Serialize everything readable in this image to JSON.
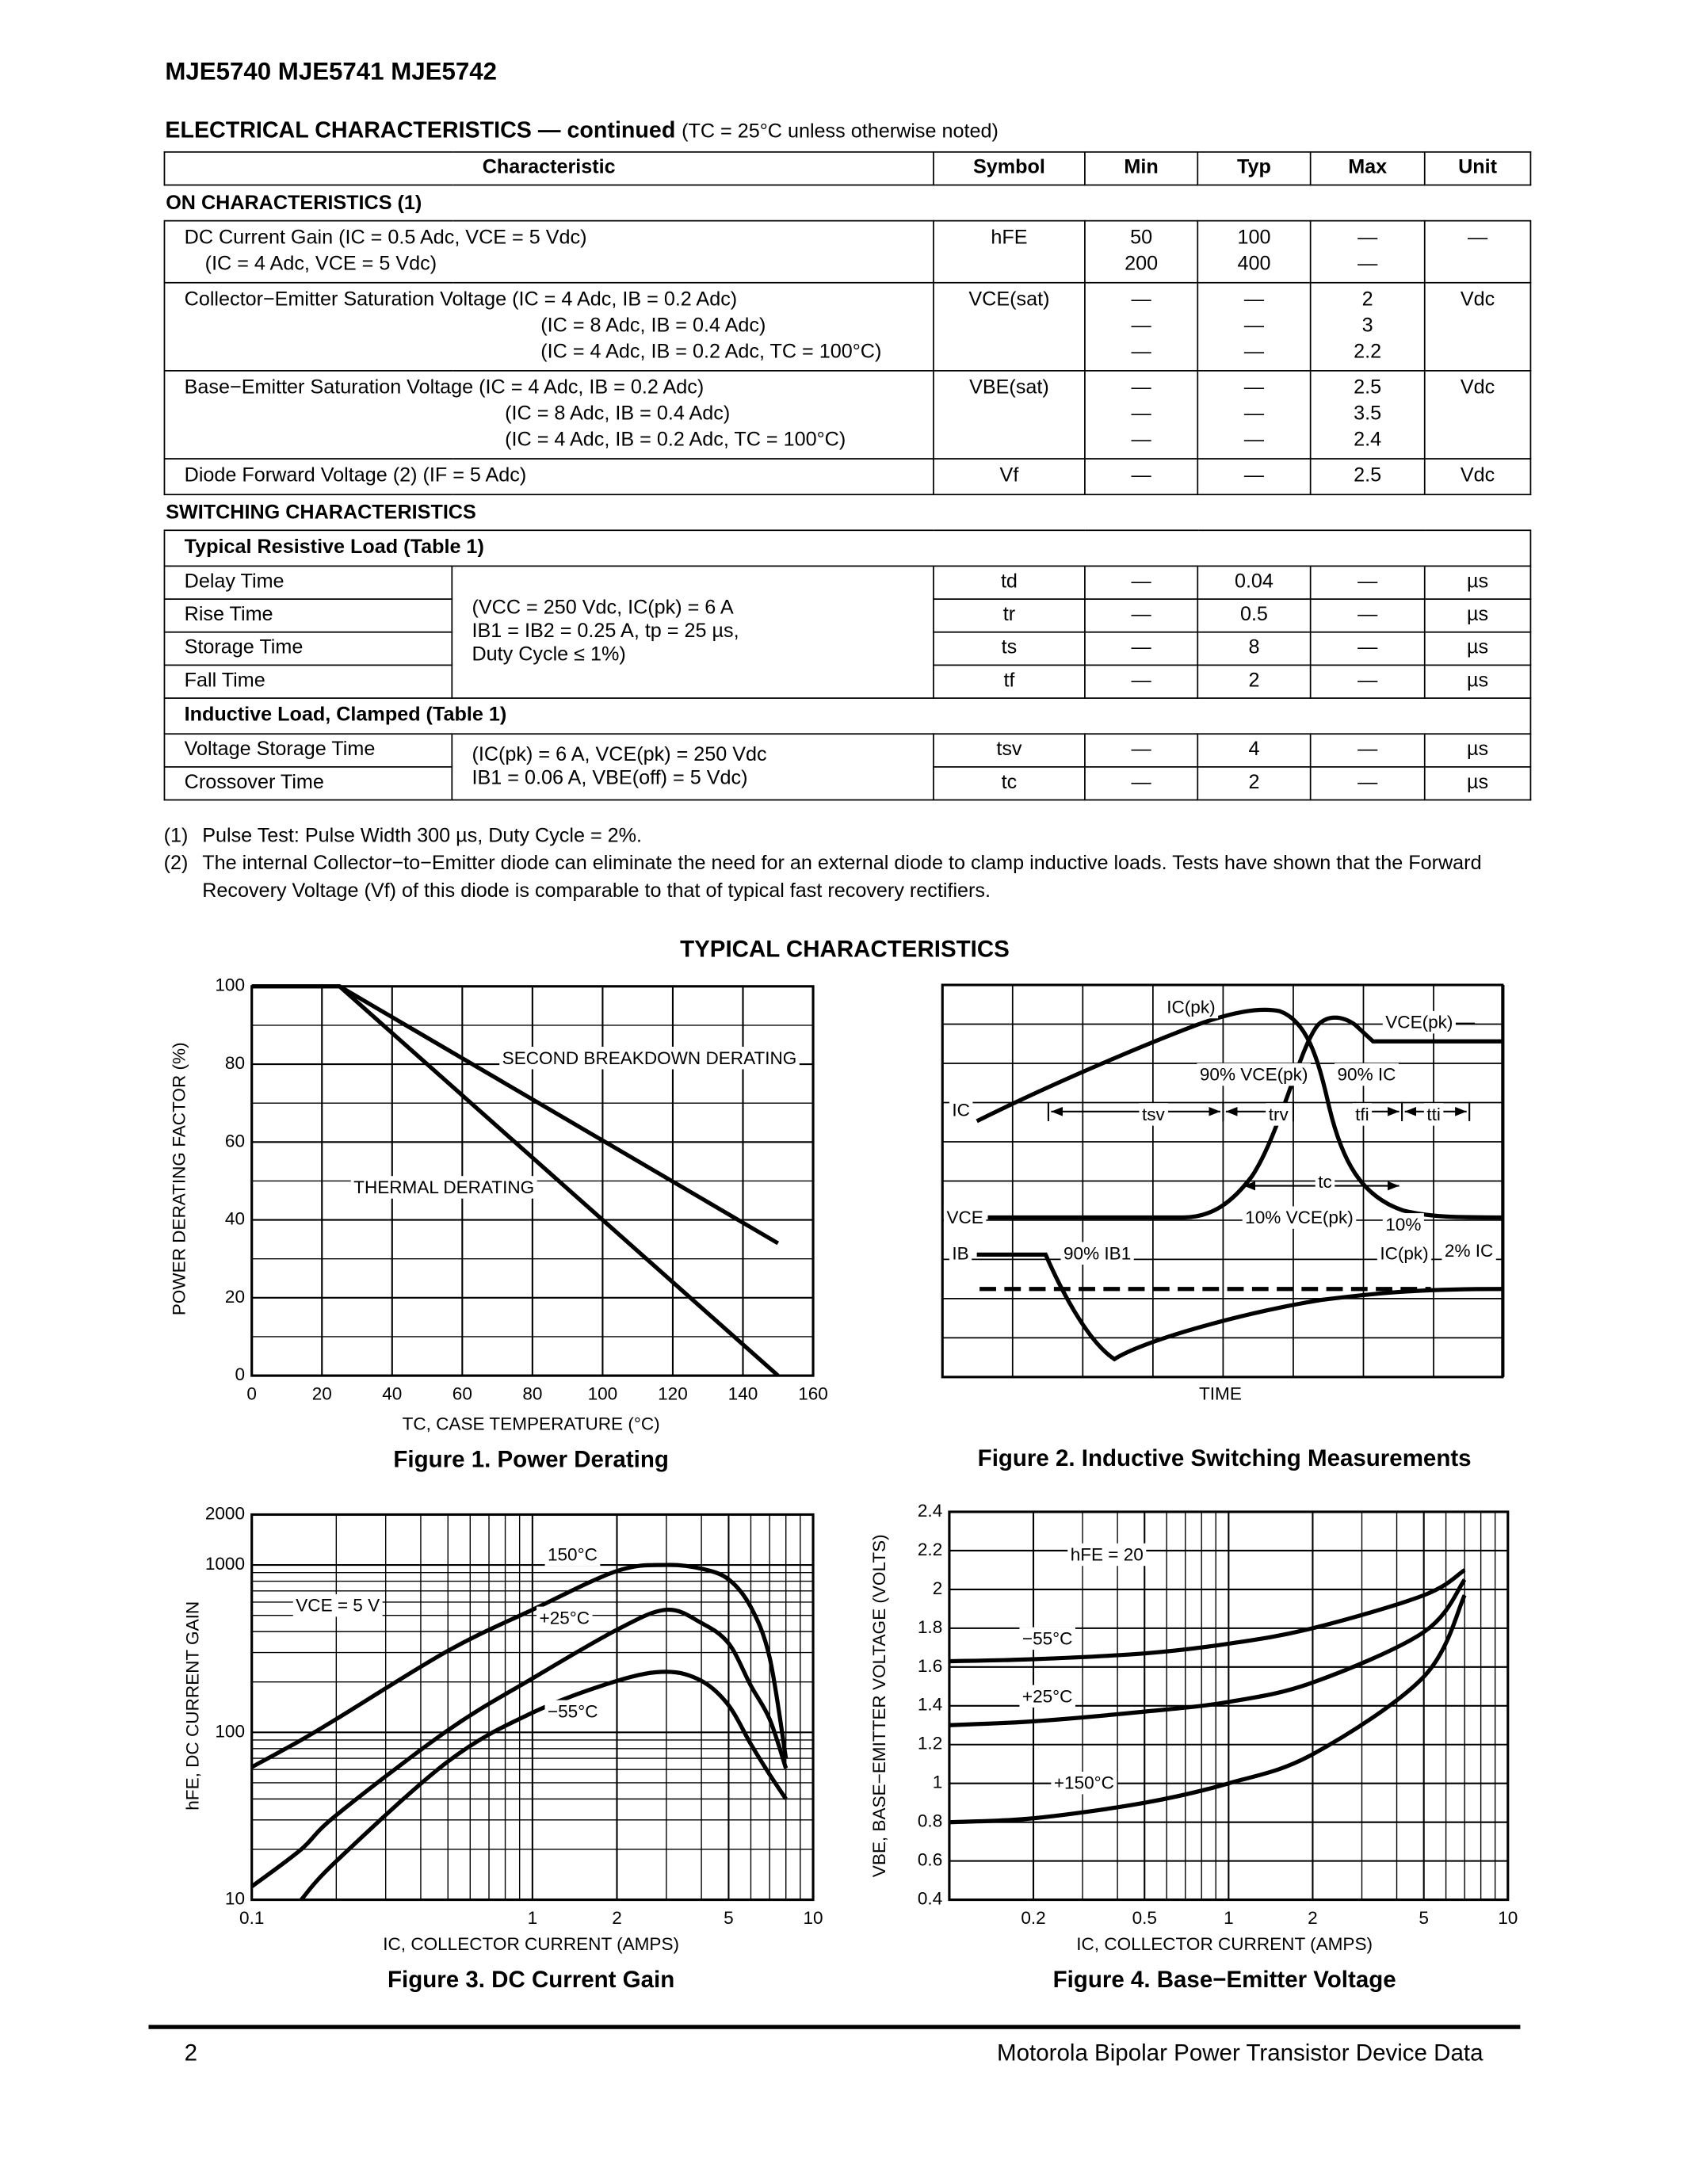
{
  "header": {
    "title": "MJE5740 MJE5741 MJE5742"
  },
  "section": {
    "title": "ELECTRICAL CHARACTERISTICS — continued",
    "condition": "(TC = 25°C unless otherwise noted)"
  },
  "table": {
    "columns": [
      "Characteristic",
      "Symbol",
      "Min",
      "Typ",
      "Max",
      "Unit"
    ],
    "groups": [
      {
        "title": "ON CHARACTERISTICS (1)",
        "rows": [
          {
            "characteristic": [
              "DC Current Gain (IC = 0.5 Adc, VCE = 5 Vdc)",
              "(IC = 4 Adc, VCE = 5 Vdc)"
            ],
            "symbol": "hFE",
            "min": [
              50,
              200
            ],
            "typ": [
              100,
              400
            ],
            "max": [
              "—",
              "—"
            ],
            "unit": "—"
          },
          {
            "characteristic": [
              "Collector−Emitter Saturation Voltage (IC = 4 Adc, IB = 0.2 Adc)",
              "(IC = 8 Adc, IB = 0.4 Adc)",
              "(IC = 4 Adc, IB = 0.2 Adc, TC = 100°C)"
            ],
            "symbol": "VCE(sat)",
            "min": [
              "—",
              "—",
              "—"
            ],
            "typ": [
              "—",
              "—",
              "—"
            ],
            "max": [
              2,
              3,
              2.2
            ],
            "unit": "Vdc"
          },
          {
            "characteristic": [
              "Base−Emitter Saturation Voltage (IC = 4 Adc, IB = 0.2 Adc)",
              "(IC = 8 Adc, IB = 0.4 Adc)",
              "(IC = 4 Adc, IB = 0.2 Adc, TC = 100°C)"
            ],
            "symbol": "VBE(sat)",
            "min": [
              "—",
              "—",
              "—"
            ],
            "typ": [
              "—",
              "—",
              "—"
            ],
            "max": [
              2.5,
              3.5,
              2.4
            ],
            "unit": "Vdc"
          },
          {
            "characteristic": [
              "Diode Forward Voltage (2) (IF = 5 Adc)"
            ],
            "symbol": "Vf",
            "min": [
              "—"
            ],
            "typ": [
              "—"
            ],
            "max": [
              2.5
            ],
            "unit": "Vdc"
          }
        ]
      },
      {
        "title": "SWITCHING CHARACTERISTICS",
        "subgroups": [
          {
            "title": "Typical Resistive Load (Table 1)",
            "condition": [
              "(VCC = 250 Vdc, IC(pk) = 6 A",
              "IB1 = IB2 = 0.25 A, tp = 25 µs,",
              "Duty Cycle ≤ 1%)"
            ],
            "rows": [
              {
                "characteristic": "Delay Time",
                "symbol": "td",
                "min": "—",
                "typ": 0.04,
                "max": "—",
                "unit": "µs"
              },
              {
                "characteristic": "Rise Time",
                "symbol": "tr",
                "min": "—",
                "typ": 0.5,
                "max": "—",
                "unit": "µs"
              },
              {
                "characteristic": "Storage Time",
                "symbol": "ts",
                "min": "—",
                "typ": 8,
                "max": "—",
                "unit": "µs"
              },
              {
                "characteristic": "Fall Time",
                "symbol": "tf",
                "min": "—",
                "typ": 2,
                "max": "—",
                "unit": "µs"
              }
            ]
          },
          {
            "title": "Inductive Load, Clamped (Table 1)",
            "condition": [
              "(IC(pk) = 6 A, VCE(pk) = 250 Vdc",
              "IB1 = 0.06 A, VBE(off) = 5 Vdc)"
            ],
            "rows": [
              {
                "characteristic": "Voltage Storage Time",
                "symbol": "tsv",
                "min": "—",
                "typ": 4,
                "max": "—",
                "unit": "µs"
              },
              {
                "characteristic": "Crossover Time",
                "symbol": "tc",
                "min": "—",
                "typ": 2,
                "max": "—",
                "unit": "µs"
              }
            ]
          }
        ]
      }
    ]
  },
  "footnotes": [
    {
      "mark": "(1)",
      "text": "Pulse Test: Pulse Width 300 µs, Duty Cycle = 2%."
    },
    {
      "mark": "(2)",
      "text": "The internal Collector−to−Emitter diode can eliminate the need for an external diode to clamp inductive loads. Tests have shown that the Forward Recovery Voltage (Vf) of this diode is comparable to that of typical fast recovery rectifiers."
    }
  ],
  "figures_title": "TYPICAL CHARACTERISTICS",
  "chart_data": [
    {
      "type": "line",
      "title": "Figure 1. Power Derating",
      "x_label": "TC, CASE TEMPERATURE (°C)",
      "y_label": "POWER DERATING FACTOR (%)",
      "x": [
        0,
        25,
        150
      ],
      "series": [
        {
          "name": "SECOND BREAKDOWN DERATING",
          "color": "#000000",
          "values": [
            100,
            100,
            34
          ]
        },
        {
          "name": "THERMAL DERATING",
          "color": "#000000",
          "values": [
            100,
            100,
            0
          ]
        }
      ],
      "xlim": [
        0,
        160
      ],
      "xticks": [
        0,
        20,
        40,
        60,
        80,
        100,
        120,
        140,
        160
      ],
      "ylim": [
        0,
        100
      ],
      "yticks": [
        0,
        20,
        40,
        60,
        80,
        100
      ],
      "yminor": [
        10,
        30,
        50,
        70,
        90
      ],
      "grid": true
    },
    {
      "type": "line",
      "title": "Figure 3. DC Current Gain",
      "x_label": "IC, COLLECTOR CURRENT (AMPS)",
      "y_label": "hFE, DC CURRENT GAIN",
      "annotations": [
        "VCE = 5 V"
      ],
      "xscale": "log",
      "yscale": "log",
      "x": [
        0.1,
        0.15,
        0.2,
        0.5,
        1,
        2,
        3,
        4,
        5,
        6,
        7,
        8
      ],
      "series": [
        {
          "name": "150°C",
          "color": "#000000",
          "values": [
            62,
            90,
            120,
            307,
            540,
            920,
            1000,
            950,
            820,
            560,
            280,
            70
          ]
        },
        {
          "name": "+25°C",
          "color": "#000000",
          "values": [
            12,
            20,
            32,
            103,
            210,
            410,
            540,
            450,
            340,
            190,
            120,
            61
          ]
        },
        {
          "name": "−55°C",
          "color": "#000000",
          "values": [
            null,
            10,
            17,
            67,
            131,
            203,
            230,
            203,
            145,
            85,
            56,
            40
          ]
        }
      ],
      "xlim": [
        0.1,
        10
      ],
      "xticks": [
        0.1,
        1,
        2,
        5,
        10
      ],
      "xminor": [
        0.2,
        0.3,
        0.4,
        0.5,
        0.6,
        0.7,
        0.8,
        0.9,
        3,
        4,
        6,
        7,
        8,
        9
      ],
      "ylim": [
        10,
        2000
      ],
      "yticks": [
        10,
        100,
        1000,
        2000
      ],
      "yminor": [
        20,
        30,
        40,
        50,
        60,
        70,
        80,
        90,
        200,
        300,
        400,
        500,
        600,
        700,
        800,
        900
      ],
      "grid": true
    },
    {
      "type": "line",
      "title": "Figure 4. Base−Emitter Voltage",
      "x_label": "IC, COLLECTOR CURRENT (AMPS)",
      "y_label": "VBE, BASE−EMITTER VOLTAGE (VOLTS)",
      "annotations": [
        "hFE = 20"
      ],
      "xscale": "log",
      "x": [
        0.1,
        0.2,
        0.5,
        1,
        2,
        5,
        7
      ],
      "series": [
        {
          "name": "−55°C",
          "color": "#000000",
          "values": [
            1.63,
            1.64,
            1.67,
            1.72,
            1.8,
            1.97,
            2.1
          ]
        },
        {
          "name": "+25°C",
          "color": "#000000",
          "values": [
            1.3,
            1.32,
            1.37,
            1.42,
            1.52,
            1.78,
            2.05
          ]
        },
        {
          "name": "+150°C",
          "color": "#000000",
          "values": [
            0.8,
            0.82,
            0.9,
            1,
            1.15,
            1.55,
            1.97
          ]
        }
      ],
      "xlim": [
        0.1,
        10
      ],
      "xticks": [
        0.2,
        0.5,
        1,
        2,
        5,
        10
      ],
      "xminor": [
        0.3,
        0.4,
        0.6,
        0.7,
        0.8,
        0.9,
        3,
        4,
        6,
        7,
        8,
        9
      ],
      "ylim": [
        0.4,
        2.4
      ],
      "yticks": [
        0.4,
        0.6,
        0.8,
        1,
        1.2,
        1.4,
        1.6,
        1.8,
        2,
        2.2,
        2.4
      ],
      "grid": true
    }
  ],
  "figure_2": {
    "title": "Figure 2. Inductive Switching Measurements",
    "labels": [
      "IC(pk)",
      "VCE(pk)",
      "90% VCE(pk)",
      "90% IC",
      "IC",
      "tsv",
      "trv",
      "tfi",
      "tti",
      "tc",
      "VCE",
      "10% VCE(pk)",
      "10%",
      "IC(pk)",
      "2% IC",
      "IB",
      "90% IB1",
      "TIME"
    ]
  },
  "footer": {
    "page": "2",
    "text": "Motorola Bipolar Power Transistor Device Data"
  }
}
